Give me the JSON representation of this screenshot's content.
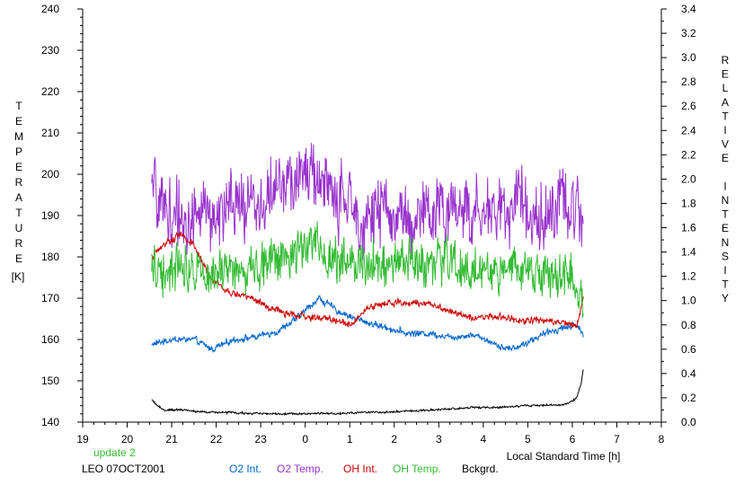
{
  "chart_data": {
    "type": "line",
    "title": "",
    "xlabel": "Local Standard Time [h]",
    "ylabel_left_letters": [
      "T",
      "E",
      "M",
      "P",
      "E",
      "R",
      "A",
      "T",
      "U",
      "R",
      "E"
    ],
    "ylabel_left_unit": "[K]",
    "ylabel_right_letters": [
      "R",
      "E",
      "L",
      "A",
      "T",
      "I",
      "V",
      "E",
      " ",
      "I",
      "N",
      "T",
      "E",
      "N",
      "S",
      "I",
      "T",
      "Y"
    ],
    "x_ticks": [
      "19",
      "20",
      "21",
      "22",
      "23",
      "0",
      "1",
      "2",
      "3",
      "4",
      "5",
      "6",
      "7",
      "8"
    ],
    "xlim": [
      19,
      32
    ],
    "y_left_ticks": [
      "140",
      "150",
      "160",
      "170",
      "180",
      "190",
      "200",
      "210",
      "220",
      "230",
      "240"
    ],
    "ylim_left": [
      140,
      240
    ],
    "y_right_ticks": [
      "0.0",
      "0.2",
      "0.4",
      "0.6",
      "0.8",
      "1.0",
      "1.2",
      "1.4",
      "1.6",
      "1.8",
      "2.0",
      "2.2",
      "2.4",
      "2.6",
      "2.8",
      "3.0",
      "3.2",
      "3.4"
    ],
    "ylim_right": [
      0,
      3.4
    ],
    "grid": false,
    "series": [
      {
        "name": "O2 Int.",
        "axis": "right",
        "color": "#0066cc",
        "noise": 0.02,
        "x": [
          20.55,
          21.0,
          21.5,
          21.9,
          22.4,
          22.9,
          23.4,
          23.8,
          24.3,
          24.8,
          25.3,
          25.8,
          26.3,
          26.8,
          27.3,
          27.8,
          28.3,
          28.6,
          28.9,
          29.4,
          29.8,
          30.1,
          30.25
        ],
        "y": [
          0.64,
          0.68,
          0.68,
          0.6,
          0.68,
          0.7,
          0.75,
          0.85,
          1.02,
          0.9,
          0.83,
          0.78,
          0.73,
          0.73,
          0.7,
          0.72,
          0.64,
          0.6,
          0.64,
          0.73,
          0.78,
          0.8,
          0.72
        ]
      },
      {
        "name": "O2 Temp.",
        "axis": "left",
        "color": "#9933cc",
        "noise": 6,
        "x": [
          20.55,
          20.9,
          21.4,
          21.9,
          22.4,
          22.9,
          23.4,
          23.8,
          24.0,
          24.4,
          24.9,
          25.4,
          25.9,
          26.4,
          26.9,
          27.4,
          27.9,
          28.4,
          28.9,
          29.4,
          29.9,
          30.25
        ],
        "y": [
          196,
          191,
          189,
          190,
          192,
          193,
          196,
          199,
          202,
          197,
          192,
          190,
          191,
          189,
          190,
          193,
          190,
          192,
          193,
          190,
          193,
          189
        ]
      },
      {
        "name": "OH Int.",
        "axis": "right",
        "color": "#cc0000",
        "noise": 0.02,
        "x": [
          20.55,
          20.9,
          21.2,
          21.5,
          21.9,
          22.3,
          22.7,
          23.2,
          23.7,
          24.2,
          24.6,
          25.0,
          25.4,
          25.8,
          26.3,
          26.8,
          27.3,
          27.8,
          28.3,
          28.8,
          29.3,
          29.8,
          30.1,
          30.25
        ],
        "y": [
          1.36,
          1.48,
          1.55,
          1.45,
          1.17,
          1.06,
          1.04,
          0.94,
          0.88,
          0.86,
          0.85,
          0.8,
          0.94,
          0.98,
          0.98,
          0.98,
          0.91,
          0.86,
          0.87,
          0.84,
          0.84,
          0.82,
          0.8,
          1.02
        ]
      },
      {
        "name": "OH Temp.",
        "axis": "left",
        "color": "#33bb33",
        "noise": 4,
        "x": [
          20.55,
          20.9,
          21.3,
          21.8,
          22.3,
          22.8,
          23.3,
          23.8,
          24.1,
          24.5,
          25.0,
          25.5,
          26.0,
          26.5,
          27.0,
          27.5,
          28.0,
          28.5,
          29.0,
          29.5,
          30.0,
          30.25
        ],
        "y": [
          178,
          177,
          178,
          178,
          176,
          177,
          180,
          181,
          184,
          180,
          180,
          178,
          179,
          178,
          179,
          177,
          177,
          176,
          177,
          176,
          175,
          168
        ]
      },
      {
        "name": "Bckgrd.",
        "axis": "right",
        "color": "#000000",
        "noise": 0.006,
        "x": [
          20.55,
          20.8,
          21.3,
          21.8,
          22.3,
          22.8,
          23.3,
          23.8,
          24.3,
          24.8,
          25.3,
          25.8,
          26.3,
          26.8,
          27.3,
          27.8,
          28.3,
          28.8,
          29.3,
          29.8,
          30.0,
          30.1,
          30.2,
          30.25
        ],
        "y": [
          0.18,
          0.1,
          0.1,
          0.08,
          0.08,
          0.07,
          0.07,
          0.07,
          0.07,
          0.07,
          0.08,
          0.08,
          0.09,
          0.1,
          0.11,
          0.12,
          0.12,
          0.13,
          0.14,
          0.14,
          0.17,
          0.2,
          0.32,
          0.44
        ]
      }
    ]
  },
  "footer": {
    "update_text": "update 2",
    "update_color": "#33bb33",
    "station_date": "LEO 07OCT2001"
  }
}
